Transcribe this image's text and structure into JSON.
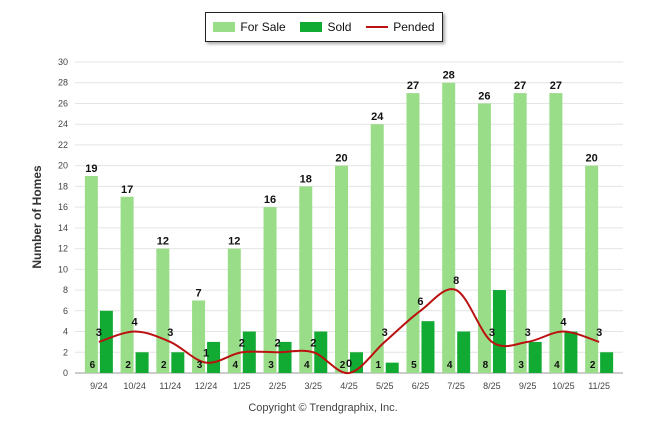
{
  "legend": {
    "for_sale": "For Sale",
    "sold": "Sold",
    "pended": "Pended"
  },
  "copyright": "Copyright © Trendgraphix, Inc.",
  "colors": {
    "for_sale": "#99dd88",
    "sold": "#11aa33",
    "pended": "#bb1111"
  },
  "chart_data": {
    "type": "bar",
    "ylabel": "Number of Homes",
    "xlabel": "",
    "ylim": [
      0,
      30
    ],
    "yticks": [
      0,
      2,
      4,
      6,
      8,
      10,
      12,
      14,
      16,
      18,
      20,
      22,
      24,
      26,
      28,
      30
    ],
    "grid": true,
    "legend_position": "top-center",
    "categories": [
      "9/24",
      "10/24",
      "11/24",
      "12/24",
      "1/25",
      "2/25",
      "3/25",
      "4/25",
      "5/25",
      "6/25",
      "7/25",
      "8/25",
      "9/25",
      "10/25",
      "11/25"
    ],
    "series": [
      {
        "name": "For Sale",
        "kind": "bar",
        "values": [
          19,
          17,
          12,
          7,
          12,
          16,
          18,
          20,
          24,
          27,
          28,
          26,
          27,
          27,
          20
        ]
      },
      {
        "name": "Sold",
        "kind": "bar",
        "values": [
          6,
          2,
          2,
          3,
          4,
          3,
          4,
          2,
          1,
          5,
          4,
          8,
          3,
          4,
          2
        ]
      },
      {
        "name": "Pended",
        "kind": "line",
        "values": [
          3,
          4,
          3,
          1,
          2,
          2,
          2,
          0,
          3,
          6,
          8,
          3,
          3,
          4,
          3
        ]
      }
    ]
  }
}
